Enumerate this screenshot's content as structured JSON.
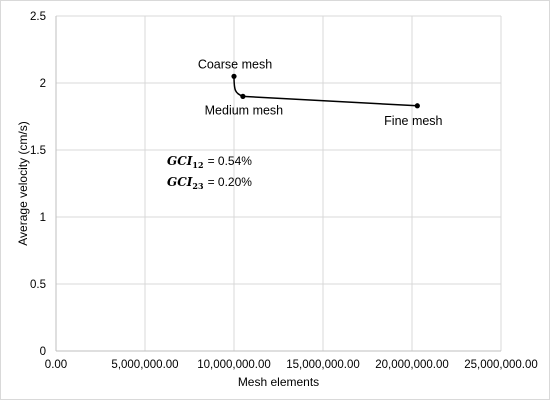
{
  "chart_data": {
    "type": "line",
    "title": "",
    "xlabel": "Mesh elements",
    "ylabel": "Average velocity (cm/s)",
    "xlim": [
      0,
      25000000
    ],
    "ylim": [
      0,
      2.5
    ],
    "xticks": [
      0,
      5000000,
      10000000,
      15000000,
      20000000,
      25000000
    ],
    "xtick_labels": [
      "0.00",
      "5,000,000.00",
      "10,000,000.00",
      "15,000,000.00",
      "20,000,000.00",
      "25,000,000.00"
    ],
    "yticks": [
      0,
      0.5,
      1,
      1.5,
      2,
      2.5
    ],
    "ytick_labels": [
      "0",
      "0.5",
      "1",
      "1.5",
      "2",
      "2.5"
    ],
    "grid": true,
    "series": [
      {
        "x": [
          10000000,
          10500000,
          20300000
        ],
        "y": [
          2.05,
          1.9,
          1.83
        ],
        "color": "#000000"
      }
    ],
    "point_labels": [
      "Coarse mesh",
      "Medium mesh",
      "Fine mesh"
    ],
    "annotations": [
      {
        "var": "GCI",
        "sub": "12",
        "value": "= 0.54%"
      },
      {
        "var": "GCI",
        "sub": "23",
        "value": "= 0.20%"
      }
    ]
  }
}
